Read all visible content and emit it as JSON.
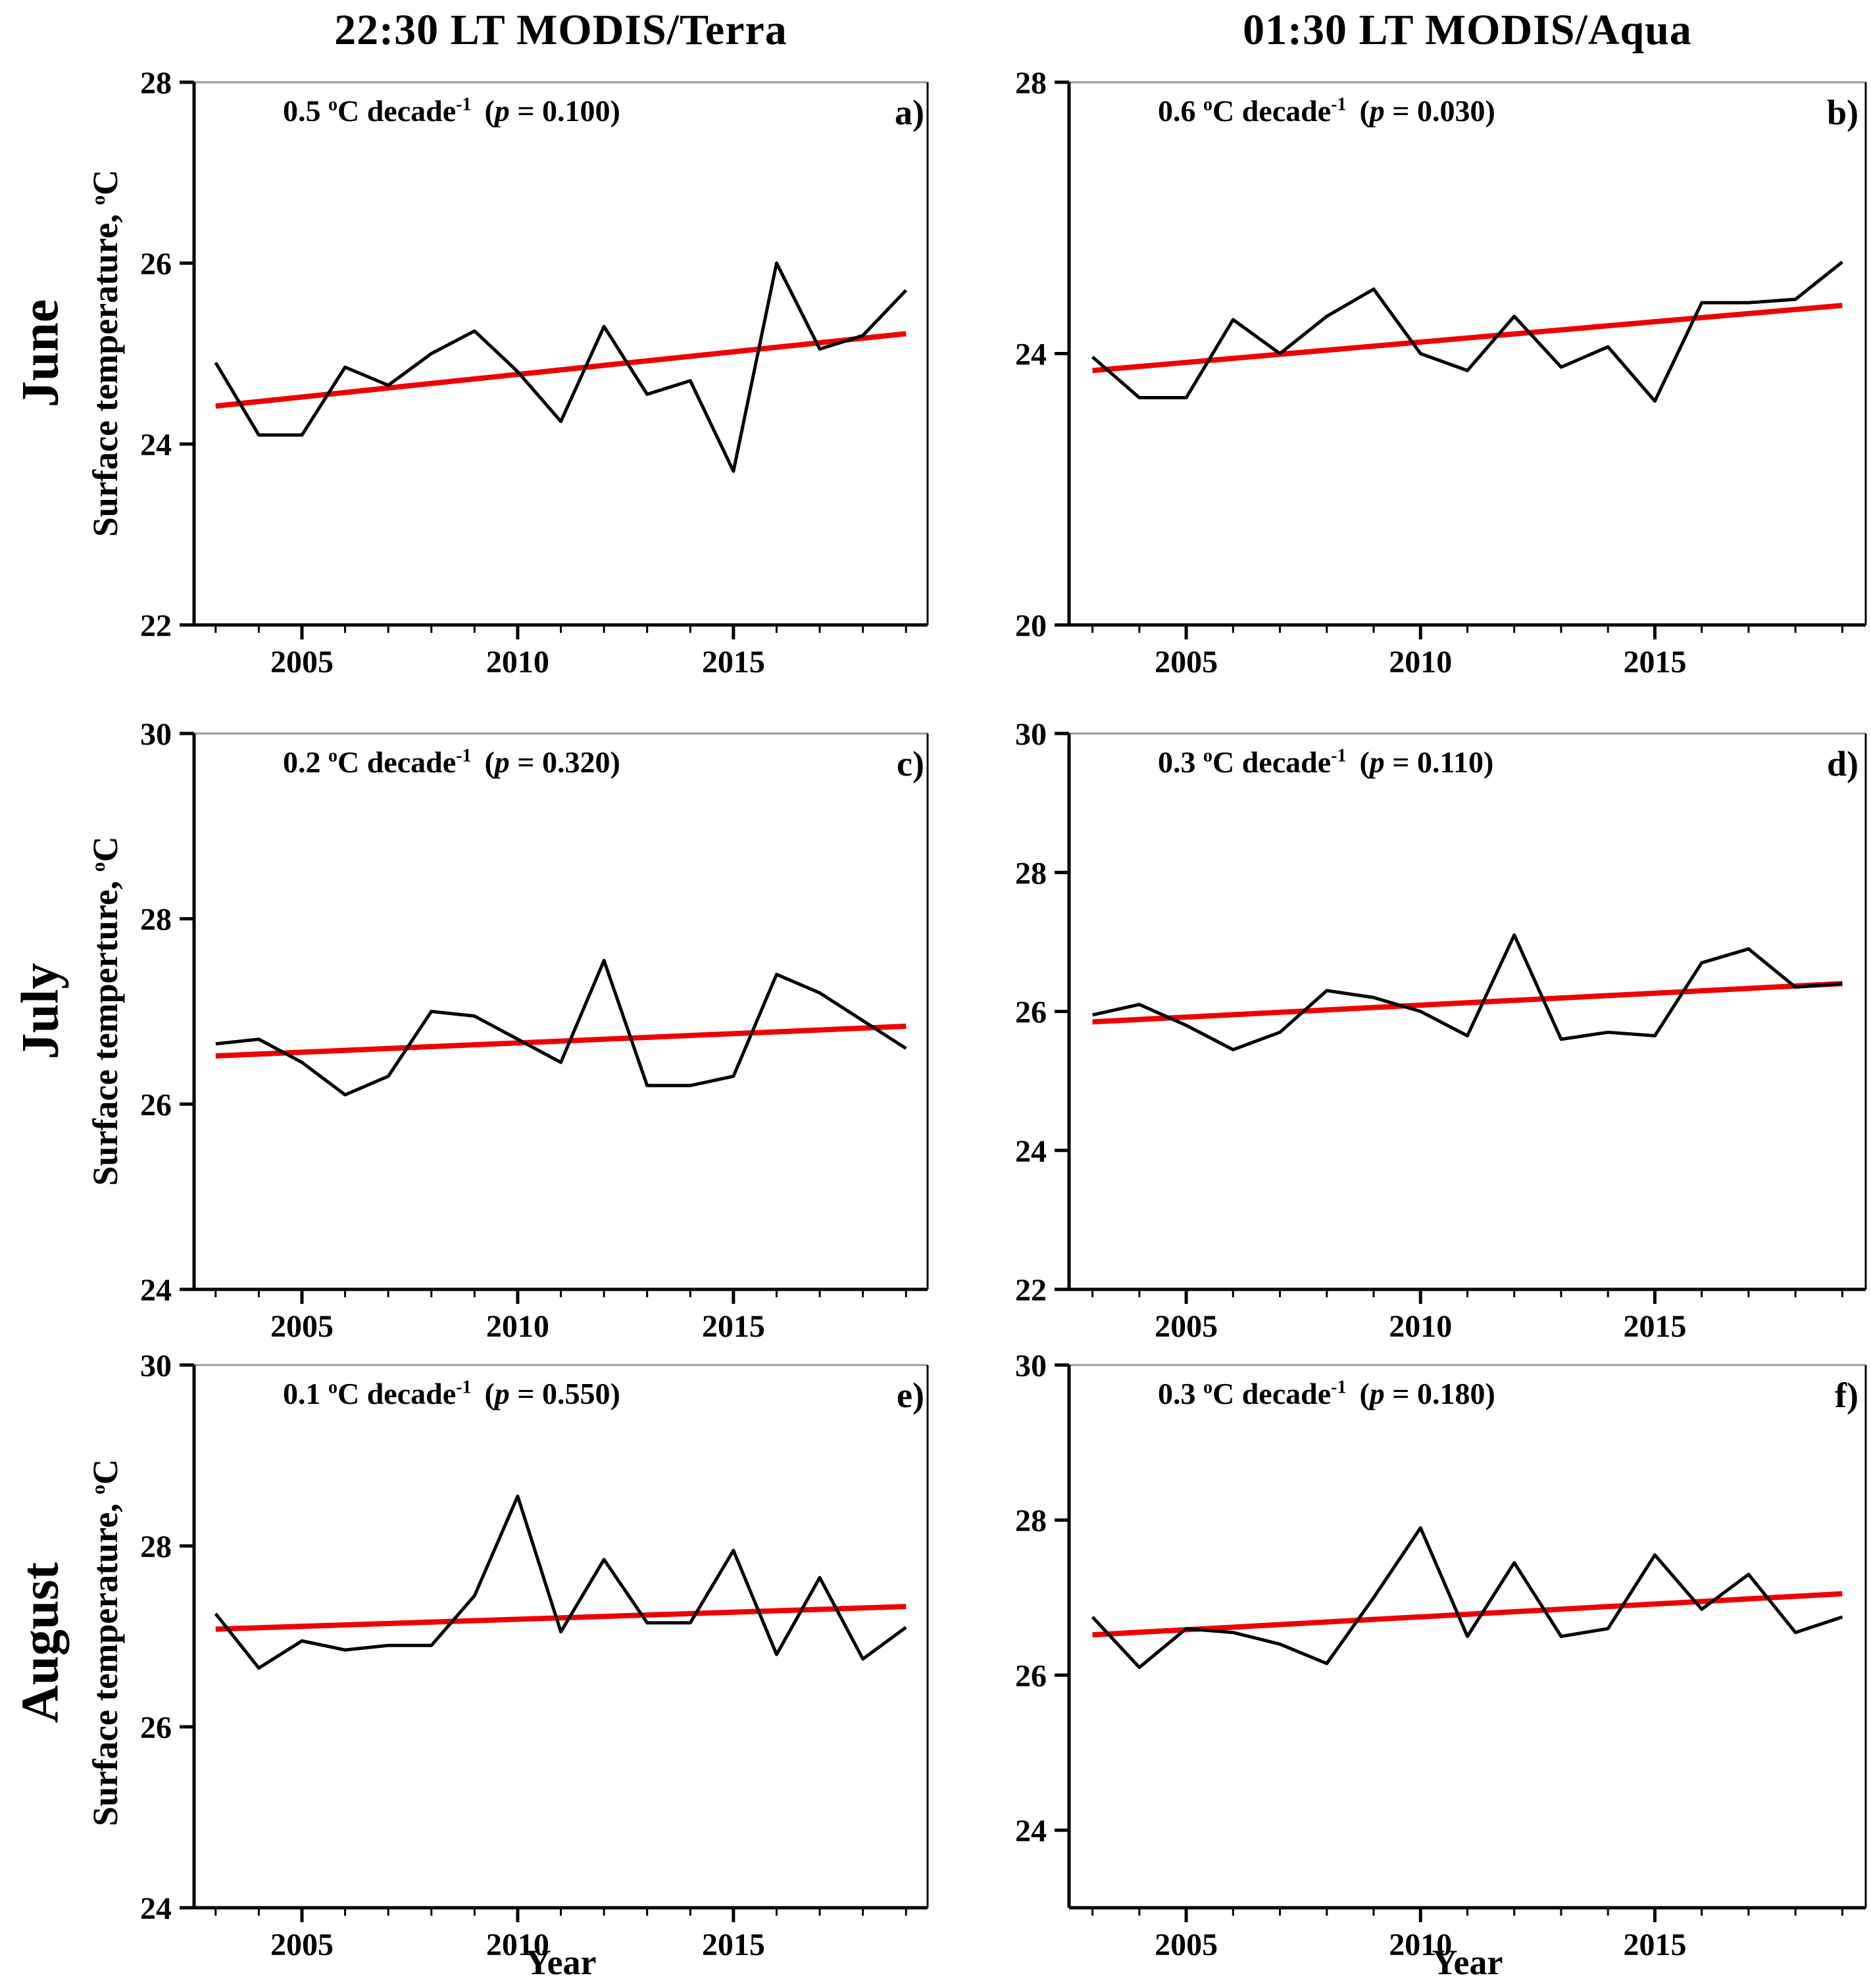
{
  "titles": {
    "left": "22:30 LT  MODIS/Terra",
    "right": "01:30 LT  MODIS/Aqua"
  },
  "rows": [
    {
      "month": "June",
      "ylabel_main": "Surface  temperature, ",
      "ylabel_deg": "o",
      "ylabel_unit": "C"
    },
    {
      "month": "July",
      "ylabel_main": "Surface  temperture, ",
      "ylabel_deg": "o",
      "ylabel_unit": "C"
    },
    {
      "month": "August",
      "ylabel_main": "Surface  temperature, ",
      "ylabel_deg": "o",
      "ylabel_unit": "C"
    }
  ],
  "xaxis": {
    "label_left": "Year",
    "label_right": "Year"
  },
  "colors": {
    "line": "#000000",
    "trend": "#ee0000",
    "frame": "#000000",
    "frame_top": "#9a9a9a"
  },
  "chart_data": {
    "type": "line",
    "x_years": [
      2003,
      2004,
      2005,
      2006,
      2007,
      2008,
      2009,
      2010,
      2011,
      2012,
      2013,
      2014,
      2015,
      2016,
      2017,
      2018,
      2019
    ],
    "xlim": [
      2002.5,
      2019.5
    ],
    "xticks": [
      2005,
      2010,
      2015
    ],
    "xlabel": "Year",
    "legend": "none",
    "grid": false,
    "panels": [
      {
        "letter": "a)",
        "month": "June",
        "column": "22:30 LT MODIS/Terra",
        "trend_text": "0.5 °C decade-1 (p = 0.100)",
        "annotation": {
          "rate": "0.5 ",
          "deg": "o",
          "unit": "C decade",
          "exp": "-1",
          "p_open": "(",
          "p_var": "p",
          "p_rest": " =  0.100)"
        },
        "ylim": [
          22,
          28
        ],
        "yticks": [
          22,
          24,
          26,
          28
        ],
        "values": [
          24.9,
          24.1,
          24.1,
          24.85,
          24.65,
          25.0,
          25.25,
          24.8,
          24.25,
          25.3,
          24.55,
          24.7,
          23.7,
          26.0,
          25.05,
          25.2,
          25.7
        ],
        "trend_start": 24.42,
        "trend_end": 25.22
      },
      {
        "letter": "b)",
        "month": "June",
        "column": "01:30 LT MODIS/Aqua",
        "trend_text": "0.6 °C decade-1 (p = 0.030)",
        "annotation": {
          "rate": "0.6 ",
          "deg": "o",
          "unit": "C decade",
          "exp": "-1",
          "p_open": "(",
          "p_var": "p",
          "p_rest": " =  0.030)"
        },
        "ylim": [
          20,
          28
        ],
        "yticks": [
          20,
          24,
          28
        ],
        "values": [
          23.95,
          23.35,
          23.35,
          24.5,
          24.0,
          24.55,
          24.95,
          24.0,
          23.75,
          24.55,
          23.8,
          24.1,
          23.3,
          24.75,
          24.75,
          24.8,
          25.35
        ],
        "trend_start": 23.75,
        "trend_end": 24.71
      },
      {
        "letter": "c)",
        "month": "July",
        "column": "22:30 LT MODIS/Terra",
        "trend_text": "0.2 °C decade-1 (p = 0.320)",
        "annotation": {
          "rate": "0.2 ",
          "deg": "o",
          "unit": "C decade",
          "exp": "-1",
          "p_open": "(",
          "p_var": "p",
          "p_rest": " =  0.320)"
        },
        "ylim": [
          24,
          30
        ],
        "yticks": [
          24,
          26,
          28,
          30
        ],
        "values": [
          26.65,
          26.7,
          26.45,
          26.1,
          26.3,
          27.0,
          26.95,
          26.7,
          26.45,
          27.55,
          26.2,
          26.2,
          26.3,
          27.4,
          27.2,
          26.9,
          26.6
        ],
        "trend_start": 26.52,
        "trend_end": 26.84
      },
      {
        "letter": "d)",
        "month": "July",
        "column": "01:30 LT MODIS/Aqua",
        "trend_text": "0.3 °C decade-1 (p = 0.110)",
        "annotation": {
          "rate": "0.3 ",
          "deg": "o",
          "unit": "C decade",
          "exp": "-1",
          "p_open": "(",
          "p_var": "p",
          "p_rest": " =  0.110)"
        },
        "ylim": [
          22,
          30
        ],
        "yticks": [
          22,
          24,
          26,
          28,
          30
        ],
        "values": [
          25.95,
          26.1,
          25.8,
          25.45,
          25.7,
          26.3,
          26.2,
          26.0,
          25.65,
          27.1,
          25.6,
          25.7,
          25.65,
          26.7,
          26.9,
          26.35,
          26.4
        ],
        "trend_start": 25.85,
        "trend_end": 26.4
      },
      {
        "letter": "e)",
        "month": "August",
        "column": "22:30 LT MODIS/Terra",
        "trend_text": "0.1 °C decade-1 (p = 0.550)",
        "annotation": {
          "rate": "0.1 ",
          "deg": "o",
          "unit": "C decade",
          "exp": "-1",
          "p_open": "(",
          "p_var": "p",
          "p_rest": " =  0.550)"
        },
        "ylim": [
          24,
          30
        ],
        "yticks": [
          24,
          26,
          28,
          30
        ],
        "values": [
          27.25,
          26.65,
          26.95,
          26.85,
          26.9,
          26.9,
          27.45,
          28.55,
          27.05,
          27.85,
          27.15,
          27.15,
          27.95,
          26.8,
          27.65,
          26.75,
          27.1
        ],
        "trend_start": 27.08,
        "trend_end": 27.33
      },
      {
        "letter": "f)",
        "month": "August",
        "column": "01:30 LT MODIS/Aqua",
        "trend_text": "0.3 °C decade-1 (p = 0.180)",
        "annotation": {
          "rate": "0.3 ",
          "deg": "o",
          "unit": "C decade",
          "exp": "-1",
          "p_open": "(",
          "p_var": "p",
          "p_rest": " =  0.180)"
        },
        "ylim": [
          23,
          30
        ],
        "yticks": [
          24,
          26,
          28,
          30
        ],
        "values": [
          26.75,
          26.1,
          26.6,
          26.55,
          26.4,
          26.15,
          27.0,
          27.9,
          26.5,
          27.45,
          26.5,
          26.6,
          27.55,
          26.85,
          27.3,
          26.55,
          26.75
        ],
        "trend_start": 26.52,
        "trend_end": 27.05
      }
    ]
  }
}
